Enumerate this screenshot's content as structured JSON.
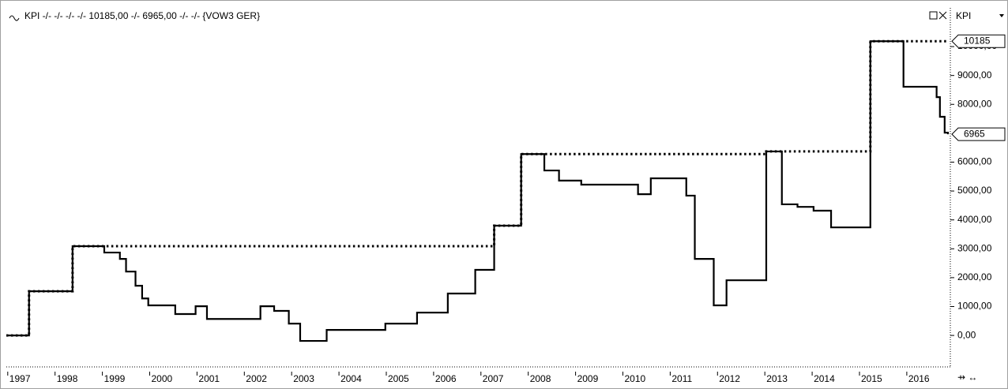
{
  "chart_data": {
    "type": "step",
    "title": "KPI -/- -/- -/- -/- 10185,00 -/- 6965,00 -/- -/- {VOW3 GER}",
    "y_axis_label": "KPI",
    "xlim": [
      1996.97,
      2016.87
    ],
    "xticks": [
      1997,
      1998,
      1999,
      2000,
      2001,
      2002,
      2003,
      2004,
      2005,
      2006,
      2007,
      2008,
      2009,
      2010,
      2011,
      2012,
      2013,
      2014,
      2015,
      2016
    ],
    "ylim": [
      -1090,
      11340
    ],
    "yticks": [
      {
        "value": 0,
        "label": "0,00"
      },
      {
        "value": 1000,
        "label": "1000,00"
      },
      {
        "value": 2000,
        "label": "2000,00"
      },
      {
        "value": 3000,
        "label": "3000,00"
      },
      {
        "value": 4000,
        "label": "4000,00"
      },
      {
        "value": 5000,
        "label": "5000,00"
      },
      {
        "value": 6000,
        "label": "6000,00"
      },
      {
        "value": 8000,
        "label": "8000,00"
      },
      {
        "value": 9000,
        "label": "9000,00"
      },
      {
        "value": 10000,
        "label": "10000,00"
      }
    ],
    "series": [
      {
        "color": "#000000",
        "style": "solid",
        "x": [
          1996.97,
          1997.45,
          1998.37,
          1999.04,
          1999.37,
          1999.5,
          1999.7,
          1999.84,
          1999.97,
          2000.54,
          2000.97,
          2001.21,
          2002.34,
          2002.63,
          2002.94,
          2003.18,
          2003.74,
          2004.98,
          2005.65,
          2006.3,
          2006.88,
          2007.28,
          2007.85,
          2008.34,
          2008.65,
          2009.12,
          2010.32,
          2010.59,
          2011.34,
          2011.52,
          2011.92,
          2012.19,
          2013.03,
          2013.36,
          2013.69,
          2014.03,
          2014.4,
          2015.23,
          2015.93,
          2016.63,
          2016.7,
          2016.8,
          2016.87
        ],
        "values": [
          0,
          1530,
          3090,
          2870,
          2650,
          2210,
          1720,
          1280,
          1040,
          740,
          1010,
          570,
          1010,
          850,
          410,
          -190,
          190,
          410,
          790,
          1450,
          2270,
          3800,
          6280,
          5710,
          5360,
          5220,
          4890,
          5440,
          4840,
          2650,
          1040,
          1910,
          6370,
          4540,
          4450,
          4320,
          3740,
          10185,
          8610,
          8250,
          7570,
          7020,
          6965
        ]
      },
      {
        "color": "#000000",
        "style": "dotted",
        "x": [
          1996.97,
          1997.45,
          1998.37,
          2007.28,
          2007.85,
          2013.03,
          2015.23,
          2016.87
        ],
        "values": [
          0,
          1530,
          3090,
          3800,
          6280,
          6370,
          10185,
          10185
        ]
      }
    ],
    "markers": [
      10185,
      6965
    ]
  }
}
